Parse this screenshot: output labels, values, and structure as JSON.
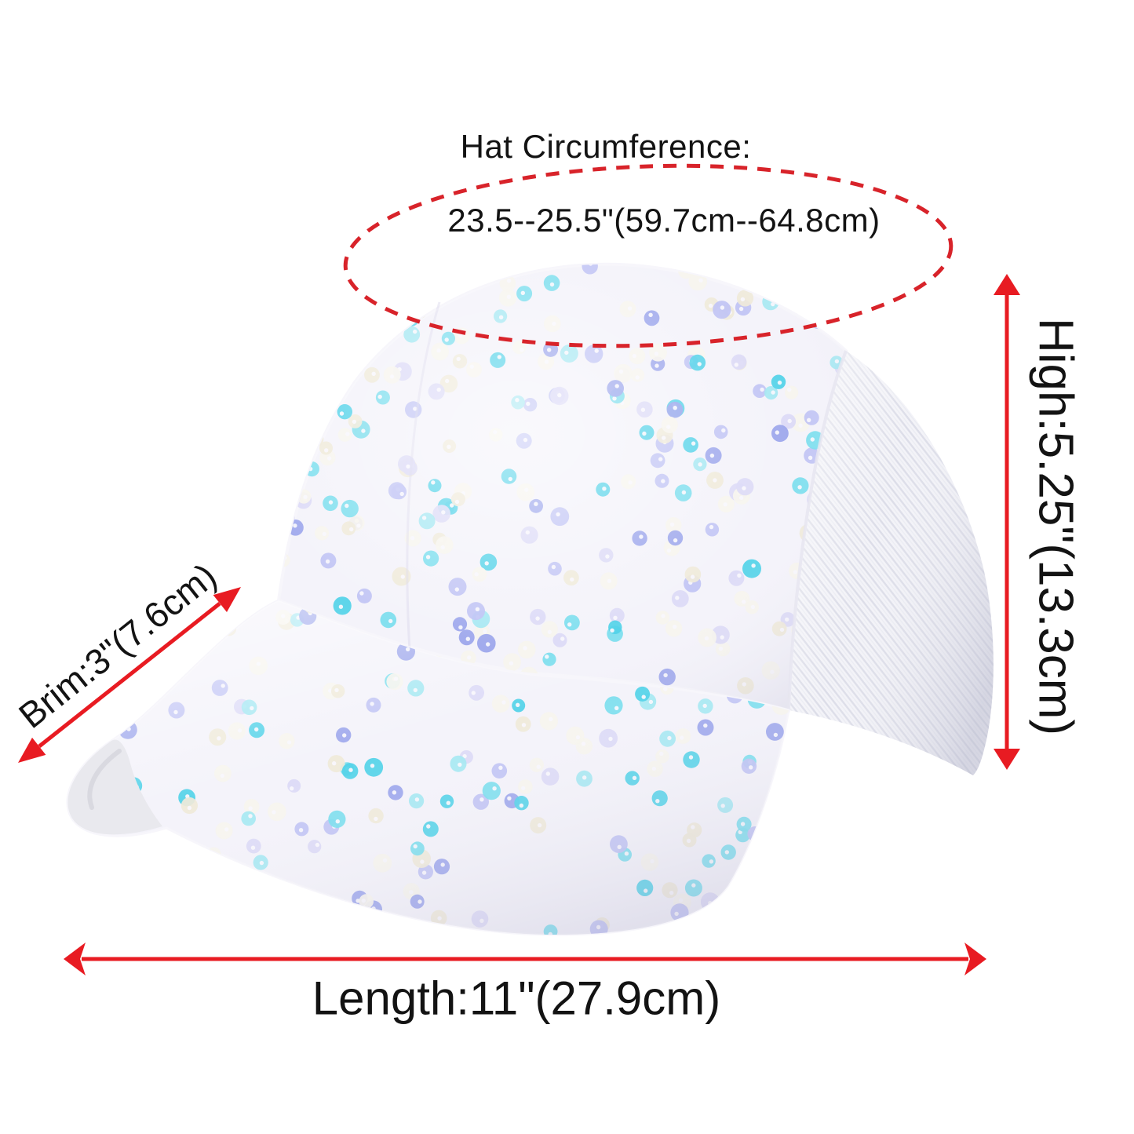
{
  "page": {
    "type": "product-dimension-diagram",
    "background": "#ffffff"
  },
  "annotations": {
    "circumference": {
      "label": "Hat Circumference:",
      "value": "23.5--25.5\"(59.7cm--64.8cm)"
    },
    "height": {
      "label": "High:5.25\"(13.3cm)"
    },
    "brim": {
      "label": "Brim:3\"(7.6cm)"
    },
    "length": {
      "label": "Length:11\"(27.9cm)"
    }
  },
  "colors": {
    "annotation_arrow": "#e81b22",
    "ellipse_dash": "#d8232a",
    "label_text": "#131313",
    "hat_fabric": "#f4f3fa",
    "hat_mesh": "#f3f3f8",
    "mesh_line": "#dcdde8",
    "mesh_line_light": "#eaebf2",
    "under_brim": "#e9e9ee",
    "sequins": [
      "#52d2e8",
      "#7bdeee",
      "#a5e7f2",
      "#c0c3f4",
      "#9ba5ec",
      "#f6f4ee",
      "#efe9d9",
      "#dcd9f6"
    ]
  }
}
